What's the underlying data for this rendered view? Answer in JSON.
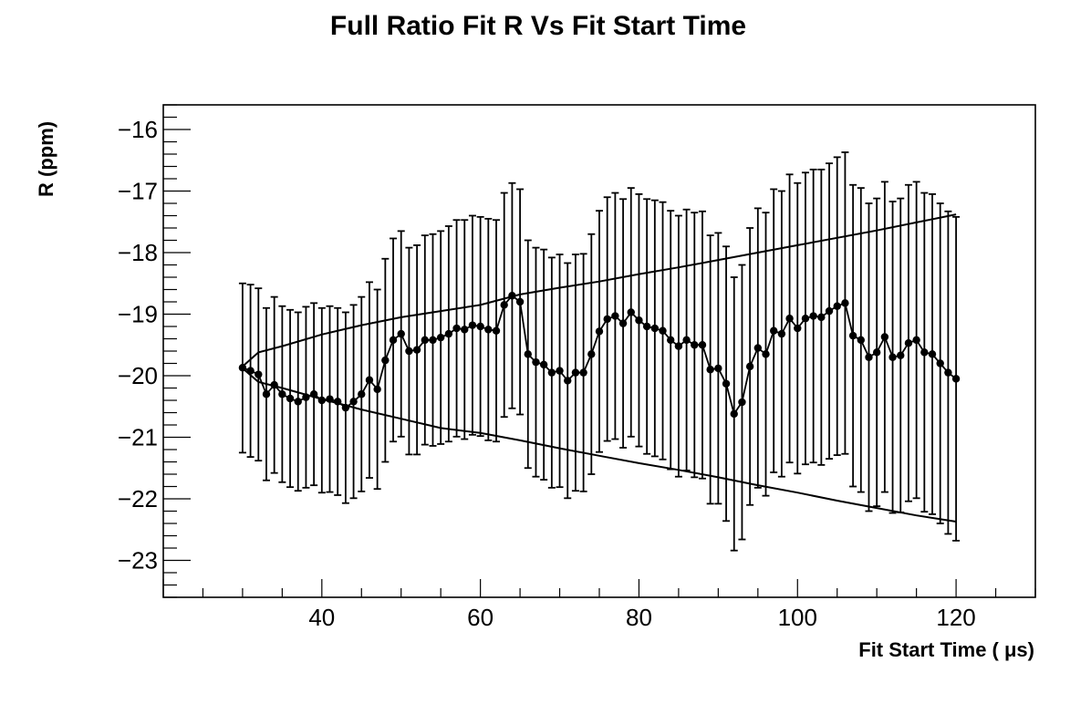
{
  "chart_data": {
    "type": "scatter",
    "title": "Full Ratio Fit R Vs Fit Start Time",
    "xlabel": "Fit Start Time ( μs)",
    "ylabel": "R (ppm)",
    "xlim": [
      20,
      130
    ],
    "ylim": [
      -23.6,
      -15.6
    ],
    "x_ticks": [
      40,
      60,
      80,
      100,
      120
    ],
    "y_ticks": [
      -16,
      -17,
      -18,
      -19,
      -20,
      -21,
      -22,
      -23
    ],
    "x_tick_labels": [
      "40",
      "60",
      "80",
      "100",
      "120"
    ],
    "y_tick_labels": [
      "−16",
      "−17",
      "−18",
      "−19",
      "−20",
      "−21",
      "−22",
      "−23"
    ],
    "grid": false,
    "series": [
      {
        "x": [
          30,
          31,
          32,
          33,
          34,
          35,
          36,
          37,
          38,
          39,
          40,
          41,
          42,
          43,
          44,
          45,
          46,
          47,
          48,
          49,
          50,
          51,
          52,
          53,
          54,
          55,
          56,
          57,
          58,
          59,
          60,
          61,
          62,
          63,
          64,
          65,
          66,
          67,
          68,
          69,
          70,
          71,
          72,
          73,
          74,
          75,
          76,
          77,
          78,
          79,
          80,
          81,
          82,
          83,
          84,
          85,
          86,
          87,
          88,
          89,
          90,
          91,
          92,
          93,
          94,
          95,
          96,
          97,
          98,
          99,
          100,
          101,
          102,
          103,
          104,
          105,
          106,
          107,
          108,
          109,
          110,
          111,
          112,
          113,
          114,
          115,
          116,
          117,
          118,
          119,
          120
        ],
        "y": [
          -19.87,
          -19.92,
          -19.98,
          -20.3,
          -20.15,
          -20.3,
          -20.37,
          -20.42,
          -20.35,
          -20.3,
          -20.4,
          -20.38,
          -20.42,
          -20.52,
          -20.42,
          -20.3,
          -20.07,
          -20.22,
          -19.75,
          -19.42,
          -19.32,
          -19.6,
          -19.58,
          -19.42,
          -19.42,
          -19.38,
          -19.32,
          -19.23,
          -19.25,
          -19.18,
          -19.2,
          -19.25,
          -19.27,
          -18.85,
          -18.7,
          -18.8,
          -19.65,
          -19.78,
          -19.82,
          -19.95,
          -19.92,
          -20.08,
          -19.95,
          -19.95,
          -19.65,
          -19.28,
          -19.08,
          -19.03,
          -19.15,
          -18.97,
          -19.1,
          -19.2,
          -19.23,
          -19.27,
          -19.42,
          -19.52,
          -19.42,
          -19.5,
          -19.5,
          -19.9,
          -19.88,
          -20.13,
          -20.62,
          -20.43,
          -19.85,
          -19.55,
          -19.65,
          -19.27,
          -19.32,
          -19.07,
          -19.23,
          -19.07,
          -19.03,
          -19.05,
          -18.95,
          -18.87,
          -18.82,
          -19.35,
          -19.42,
          -19.7,
          -19.62,
          -19.37,
          -19.7,
          -19.67,
          -19.47,
          -19.42,
          -19.62,
          -19.65,
          -19.8,
          -19.95,
          -20.05
        ],
        "err_high": [
          -18.5,
          -18.52,
          -18.58,
          -18.9,
          -18.72,
          -18.87,
          -18.93,
          -18.97,
          -18.88,
          -18.82,
          -18.9,
          -18.87,
          -18.9,
          -18.97,
          -18.85,
          -18.72,
          -18.48,
          -18.6,
          -18.1,
          -17.77,
          -17.65,
          -17.92,
          -17.88,
          -17.72,
          -17.7,
          -17.65,
          -17.57,
          -17.47,
          -17.47,
          -17.4,
          -17.42,
          -17.45,
          -17.47,
          -17.03,
          -16.87,
          -16.97,
          -17.8,
          -17.92,
          -17.95,
          -18.08,
          -18.03,
          -18.17,
          -18.03,
          -18.02,
          -17.7,
          -17.32,
          -17.1,
          -17.03,
          -17.13,
          -16.95,
          -17.05,
          -17.13,
          -17.15,
          -17.18,
          -17.32,
          -17.4,
          -17.3,
          -17.35,
          -17.33,
          -17.72,
          -17.68,
          -17.9,
          -18.4,
          -18.2,
          -17.6,
          -17.28,
          -17.35,
          -16.97,
          -17.0,
          -16.73,
          -16.87,
          -16.7,
          -16.65,
          -16.65,
          -16.55,
          -16.45,
          -16.37,
          -16.9,
          -16.95,
          -17.2,
          -17.12,
          -16.85,
          -17.17,
          -17.12,
          -16.9,
          -16.85,
          -17.03,
          -17.05,
          -17.2,
          -17.33,
          -17.42
        ],
        "err_low": [
          -21.25,
          -21.32,
          -21.38,
          -21.7,
          -21.58,
          -21.73,
          -21.81,
          -21.87,
          -21.82,
          -21.78,
          -21.9,
          -21.89,
          -21.94,
          -22.07,
          -21.99,
          -21.88,
          -21.66,
          -21.84,
          -21.4,
          -21.07,
          -20.99,
          -21.28,
          -21.28,
          -21.12,
          -21.14,
          -21.11,
          -21.07,
          -20.99,
          -21.03,
          -20.96,
          -20.98,
          -21.05,
          -21.07,
          -20.67,
          -20.53,
          -20.63,
          -21.5,
          -21.64,
          -21.69,
          -21.82,
          -21.81,
          -21.99,
          -21.87,
          -21.88,
          -21.6,
          -21.24,
          -21.06,
          -21.03,
          -21.17,
          -20.99,
          -21.15,
          -21.27,
          -21.31,
          -21.36,
          -21.52,
          -21.64,
          -21.54,
          -21.65,
          -21.67,
          -22.08,
          -22.08,
          -22.36,
          -22.84,
          -22.66,
          -22.1,
          -21.82,
          -21.95,
          -21.57,
          -21.64,
          -21.41,
          -21.59,
          -21.44,
          -21.41,
          -21.45,
          -21.35,
          -21.29,
          -21.27,
          -21.8,
          -21.89,
          -22.2,
          -22.12,
          -21.89,
          -22.23,
          -22.22,
          -22.04,
          -21.99,
          -22.21,
          -22.25,
          -22.4,
          -22.57,
          -22.68
        ]
      }
    ],
    "band": {
      "x": [
        30,
        32,
        35,
        40,
        45,
        50,
        55,
        60,
        65,
        70,
        75,
        80,
        85,
        90,
        95,
        100,
        105,
        110,
        115,
        120
      ],
      "upper": [
        -19.85,
        -19.62,
        -19.52,
        -19.33,
        -19.18,
        -19.05,
        -18.95,
        -18.85,
        -18.68,
        -18.57,
        -18.47,
        -18.35,
        -18.24,
        -18.12,
        -18.0,
        -17.88,
        -17.76,
        -17.64,
        -17.51,
        -17.38
      ],
      "lower": [
        -19.88,
        -20.1,
        -20.2,
        -20.38,
        -20.55,
        -20.7,
        -20.85,
        -20.93,
        -21.05,
        -21.18,
        -21.3,
        -21.42,
        -21.53,
        -21.65,
        -21.78,
        -21.9,
        -22.03,
        -22.15,
        -22.27,
        -22.37
      ]
    }
  }
}
